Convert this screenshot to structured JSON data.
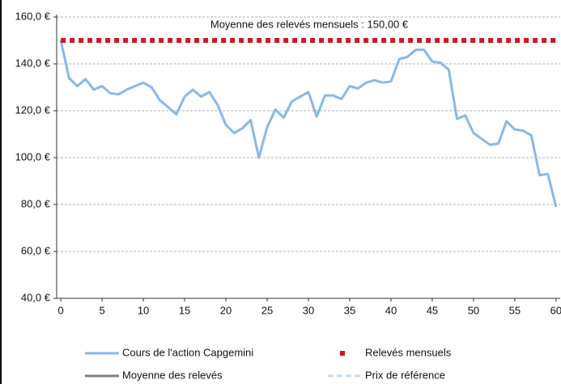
{
  "chart_data": {
    "type": "line",
    "annotation": "Moyenne des relevés mensuels : 150,00 €",
    "xlim": [
      -0.5,
      60.5
    ],
    "xticks": [
      0,
      5,
      10,
      15,
      20,
      25,
      30,
      35,
      40,
      45,
      50,
      55,
      60
    ],
    "ylim": [
      40,
      160
    ],
    "yticks": [
      {
        "value": 40,
        "label": "40,0 €"
      },
      {
        "value": 60,
        "label": "60,0 €"
      },
      {
        "value": 80,
        "label": "80,0 €"
      },
      {
        "value": 100,
        "label": "100,0 €"
      },
      {
        "value": 120,
        "label": "120,0 €"
      },
      {
        "value": 140,
        "label": "140,0 €"
      },
      {
        "value": 160,
        "label": "160,0 €"
      }
    ],
    "grid": true,
    "series": [
      {
        "name": "Cours de l'action Capgemini",
        "color": "#8ab8e8",
        "style": "solid",
        "x": [
          0,
          1,
          2,
          3,
          4,
          5,
          6,
          7,
          8,
          9,
          10,
          11,
          12,
          13,
          14,
          15,
          16,
          17,
          18,
          19,
          20,
          21,
          22,
          23,
          24,
          25,
          26,
          27,
          28,
          29,
          30,
          31,
          32,
          33,
          34,
          35,
          36,
          37,
          38,
          39,
          40,
          41,
          42,
          43,
          44,
          45,
          46,
          47,
          48,
          49,
          50,
          51,
          52,
          53,
          54,
          55,
          56,
          57,
          58,
          59,
          60
        ],
        "values": [
          150,
          134,
          130.5,
          133.5,
          129,
          130.5,
          127.5,
          127,
          129,
          130.5,
          132,
          130,
          124.5,
          121.5,
          118.5,
          126,
          129,
          126,
          128,
          122.5,
          114,
          110.5,
          112.5,
          116,
          100,
          113,
          120.5,
          117,
          124,
          126,
          128,
          117.5,
          126.5,
          126.5,
          125,
          130.5,
          129.5,
          132,
          133,
          132,
          132.5,
          142,
          143,
          146,
          146,
          141,
          140.5,
          137.5,
          116.5,
          118,
          110.5,
          108,
          105.5,
          106,
          115.5,
          112,
          111.5,
          109.5,
          92.5,
          93,
          79
        ]
      },
      {
        "name": "Relevés mensuels",
        "color": "#d0181e",
        "style": "squares",
        "x": [
          0,
          60
        ],
        "values": [
          150,
          150
        ]
      },
      {
        "name": "Moyenne des relevés",
        "color": "#808080",
        "style": "solid",
        "x": [],
        "values": []
      },
      {
        "name": "Prix de référence",
        "color": "#c5dcf5",
        "style": "dashed",
        "x": [],
        "values": []
      }
    ]
  }
}
